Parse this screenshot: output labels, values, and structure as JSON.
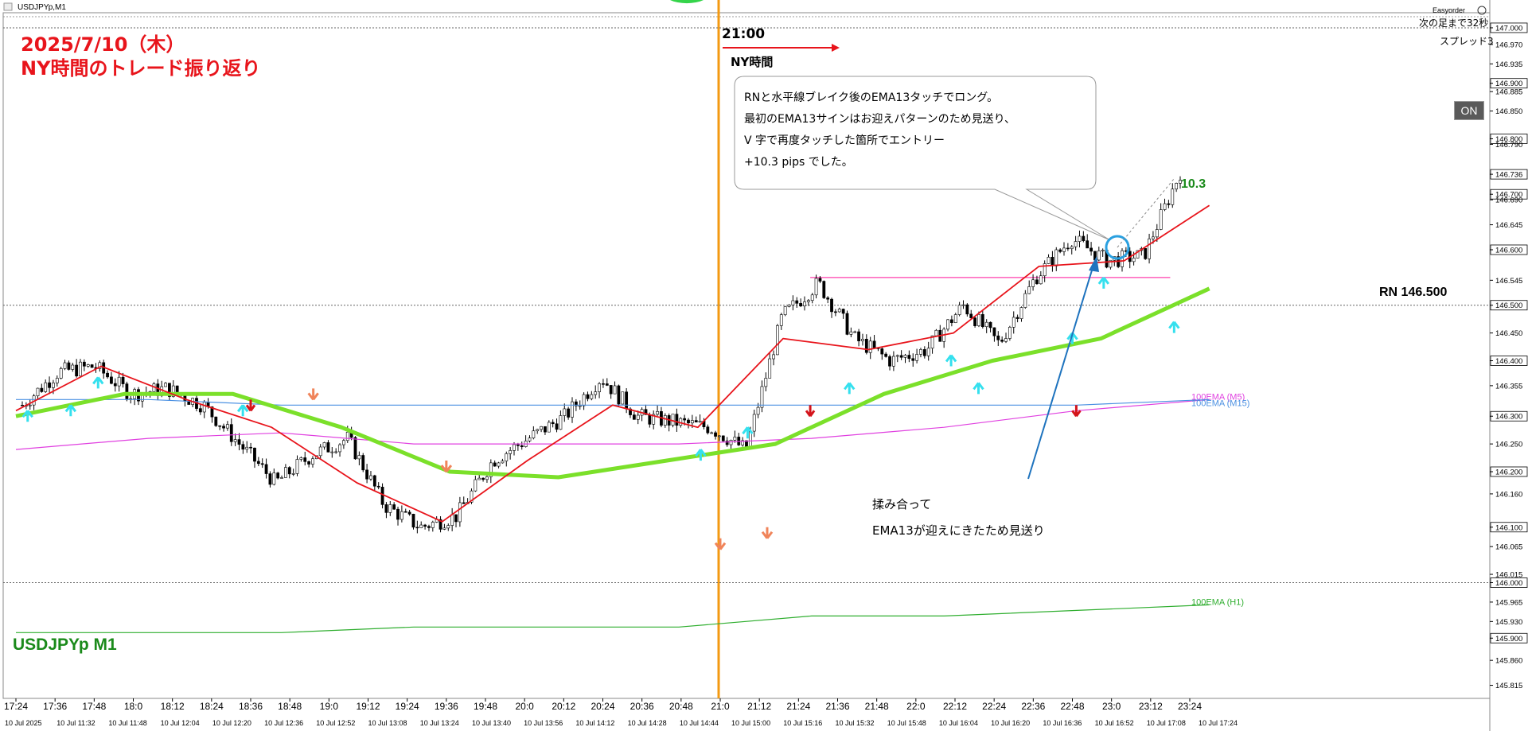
{
  "window": {
    "title": "USDJPYp,M1",
    "plugin_name": "Easyorder",
    "plugin_icon": "help-circle-icon",
    "next_bar": "次の足まで32秒",
    "spread": "スプレッド3",
    "on_button": "ON"
  },
  "overlay": {
    "title_line1": "2025/7/10（木）",
    "title_line2": "NY時間のトレード振り返り",
    "session_time": "21:00",
    "session_label": "NY時間",
    "callout": "RNと水平線ブレイク後のEMA13タッチでロング。\n最初のEMA13サインはお迎えパターンのため見送り、\nV 字で再度タッチした箇所でエントリー\n+10.3 pips でした。",
    "note": "揉み合って\nEMA13が迎えにきたため見送り",
    "profit_label": "10.3",
    "rn_label": "RN 146.500",
    "symbol_label": "USDJPYp M1",
    "title_color": "#e8141b",
    "symbol_color": "#1a8a1a"
  },
  "chart_data": {
    "type": "line",
    "symbol": "USDJPYp",
    "timeframe": "M1",
    "ylim": [
      145.79,
      147.02
    ],
    "y_ticks": [
      "147.000",
      "146.970",
      "146.935",
      "146.900",
      "146.885",
      "146.850",
      "146.800",
      "146.790",
      "146.736",
      "146.700",
      "146.690",
      "146.645",
      "146.600",
      "146.545",
      "146.500",
      "146.450",
      "146.400",
      "146.355",
      "146.300",
      "146.250",
      "146.200",
      "146.160",
      "146.100",
      "146.065",
      "146.015",
      "146.000",
      "145.965",
      "145.930",
      "145.900",
      "145.860",
      "145.815"
    ],
    "current_price": "146.736",
    "x_ticks_top": [
      "17:24",
      "17:36",
      "17:48",
      "18:0",
      "18:12",
      "18:24",
      "18:36",
      "18:48",
      "19:0",
      "19:12",
      "19:24",
      "19:36",
      "19:48",
      "20:0",
      "20:12",
      "20:24",
      "20:36",
      "20:48",
      "21:0",
      "21:12",
      "21:24",
      "21:36",
      "21:48",
      "22:0",
      "22:12",
      "22:24",
      "22:36",
      "22:48",
      "23:0",
      "23:12",
      "23:24"
    ],
    "x_ticks_bottom": [
      "10 Jul 2025",
      "10 Jul 11:32",
      "10 Jul 11:48",
      "10 Jul 12:04",
      "10 Jul 12:20",
      "10 Jul 12:36",
      "10 Jul 12:52",
      "10 Jul 13:08",
      "10 Jul 13:24",
      "10 Jul 13:40",
      "10 Jul 13:56",
      "10 Jul 14:12",
      "10 Jul 14:28",
      "10 Jul 14:44",
      "10 Jul 15:00",
      "10 Jul 15:16",
      "10 Jul 15:32",
      "10 Jul 15:48",
      "10 Jul 16:04",
      "10 Jul 16:20",
      "10 Jul 16:36",
      "10 Jul 16:52",
      "10 Jul 17:08",
      "10 Jul 17:24"
    ],
    "horizontal_levels": [
      {
        "value": 147.0,
        "style": "dotted"
      },
      {
        "value": 146.5,
        "style": "dotted",
        "label": "RN 146.500"
      },
      {
        "value": 146.0,
        "style": "dotted"
      },
      {
        "value": 146.55,
        "style": "solid",
        "color": "#ff3fae"
      }
    ],
    "series": [
      {
        "name": "100EMA (M5)",
        "color": "#e040e0",
        "x_start": 0,
        "x_end": 30.5,
        "values": [
          146.24,
          146.26,
          146.27,
          146.25,
          146.25,
          146.25,
          146.26,
          146.28,
          146.31,
          146.33
        ]
      },
      {
        "name": "100EMA (M15)",
        "color": "#4a90e2",
        "x_start": 0,
        "x_end": 30.5,
        "values": [
          146.33,
          146.33,
          146.32,
          146.32,
          146.32,
          146.32,
          146.32,
          146.32,
          146.32,
          146.33
        ]
      },
      {
        "name": "100EMA (H1)",
        "color": "#2fae2f",
        "x_start": 0,
        "x_end": 30.5,
        "values": [
          145.91,
          145.91,
          145.91,
          145.92,
          145.92,
          145.92,
          145.94,
          145.94,
          145.95,
          145.96
        ]
      },
      {
        "color": "#7be02a",
        "x_start": 0,
        "x_end": 30.5,
        "values": [
          146.3,
          146.34,
          146.34,
          146.28,
          146.2,
          146.19,
          146.22,
          146.25,
          146.34,
          146.4,
          146.44,
          146.53
        ]
      },
      {
        "color": "#e8141b",
        "x_start": 0,
        "x_end": 30.5,
        "values": [
          146.31,
          146.39,
          146.33,
          146.28,
          146.18,
          146.11,
          146.22,
          146.32,
          146.28,
          146.44,
          146.42,
          146.45,
          146.57,
          146.58,
          146.68
        ]
      }
    ],
    "price_path": [
      146.32,
      146.38,
      146.39,
      146.34,
      146.35,
      146.32,
      146.25,
      146.18,
      146.23,
      146.26,
      146.14,
      146.1,
      146.12,
      146.22,
      146.26,
      146.3,
      146.37,
      146.3,
      146.29,
      146.28,
      146.24,
      146.48,
      146.54,
      146.44,
      146.4,
      146.42,
      146.5,
      146.43,
      146.55,
      146.62,
      146.58,
      146.59,
      146.74
    ],
    "trade": {
      "profit_pips": 10.3,
      "entry": 146.59,
      "exit": 146.7
    }
  }
}
